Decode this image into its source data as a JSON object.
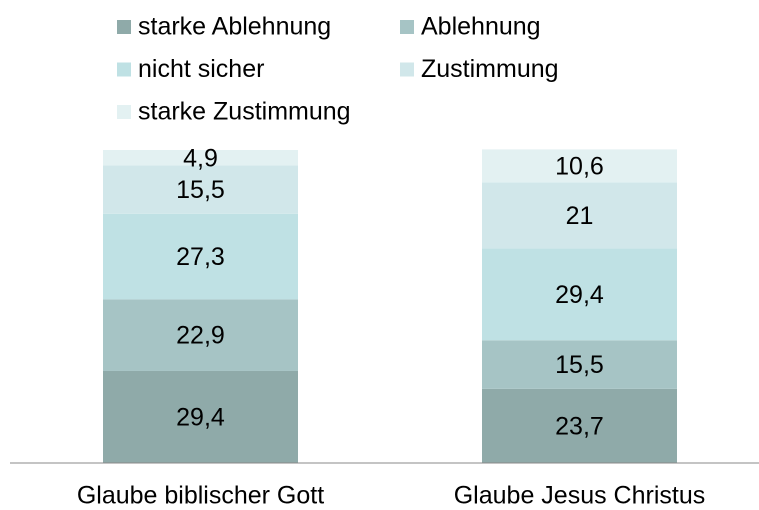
{
  "chart_data": {
    "type": "stacked_bar",
    "categories": [
      "Glaube biblischer Gott",
      "Glaube Jesus Christus"
    ],
    "series": [
      {
        "name": "starke Ablehnung",
        "color": "#8faaa9",
        "values": [
          29.4,
          23.7
        ],
        "value_labels": [
          "29,4",
          "23,7"
        ]
      },
      {
        "name": "Ablehnung",
        "color": "#a6c4c5",
        "values": [
          22.9,
          15.5
        ],
        "value_labels": [
          "22,9",
          "15,5"
        ]
      },
      {
        "name": "nicht sicher",
        "color": "#bfe1e4",
        "values": [
          27.3,
          29.4
        ],
        "value_labels": [
          "27,3",
          "29,4"
        ]
      },
      {
        "name": "Zustimmung",
        "color": "#d1e7ea",
        "values": [
          15.5,
          21
        ],
        "value_labels": [
          "15,5",
          "21"
        ]
      },
      {
        "name": "starke Zustimmung",
        "color": "#e3f1f2",
        "values": [
          4.9,
          10.6
        ],
        "value_labels": [
          "4,9",
          "10,6"
        ]
      }
    ],
    "ylim": [
      0,
      100
    ]
  }
}
